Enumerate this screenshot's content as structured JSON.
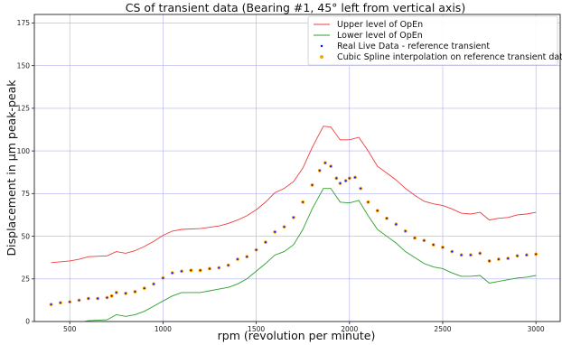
{
  "chart_data": {
    "type": "line",
    "title": "CS of transient data (Bearing #1, 45° left from vertical axis)",
    "xlabel": "rpm (revolution per minute)",
    "ylabel": "Displacement in μm peak-peak",
    "xlim": [
      310,
      3130
    ],
    "ylim": [
      0,
      180
    ],
    "xticks": [
      500,
      1000,
      1500,
      2000,
      2500,
      3000
    ],
    "yticks": [
      0,
      25,
      50,
      75,
      100,
      125,
      150,
      175
    ],
    "grid": true,
    "grid_color": "#b0b0f0",
    "legend_position": "upper-right",
    "series": [
      {
        "name": "Upper level of OpEn",
        "kind": "line",
        "color": "#f03c3c",
        "x": [
          400,
          500,
          550,
          600,
          700,
          750,
          800,
          850,
          900,
          950,
          1000,
          1050,
          1100,
          1200,
          1300,
          1350,
          1400,
          1450,
          1500,
          1550,
          1600,
          1650,
          1700,
          1750,
          1800,
          1860,
          1900,
          1950,
          2000,
          2050,
          2100,
          2150,
          2200,
          2250,
          2300,
          2350,
          2400,
          2450,
          2500,
          2550,
          2600,
          2650,
          2700,
          2750,
          2800,
          2850,
          2900,
          2950,
          3000
        ],
        "y": [
          34.5,
          35.5,
          36.5,
          38,
          38.5,
          41,
          40,
          41.5,
          44,
          47,
          50.5,
          53,
          54,
          54.5,
          56,
          57.5,
          59.5,
          62,
          65.5,
          70,
          75.5,
          78,
          82,
          90,
          102,
          114.5,
          114,
          106.5,
          106.5,
          108,
          100,
          91,
          87,
          83,
          78,
          74,
          70.5,
          69,
          68,
          66,
          63.5,
          63,
          64,
          59.5,
          60.5,
          61,
          62.5,
          63,
          64
        ]
      },
      {
        "name": "Lower level of OpEn",
        "kind": "line",
        "color": "#2ca02c",
        "x": [
          580,
          600,
          700,
          750,
          800,
          850,
          900,
          950,
          1000,
          1050,
          1100,
          1150,
          1200,
          1250,
          1300,
          1350,
          1400,
          1450,
          1500,
          1550,
          1600,
          1650,
          1700,
          1750,
          1800,
          1860,
          1900,
          1950,
          2000,
          2050,
          2100,
          2150,
          2200,
          2250,
          2300,
          2350,
          2400,
          2450,
          2500,
          2550,
          2600,
          2650,
          2700,
          2750,
          2800,
          2850,
          2900,
          2950,
          3000
        ],
        "y": [
          0,
          0.5,
          1,
          4,
          3,
          4,
          6,
          9,
          12,
          15,
          17,
          17,
          17,
          18,
          19,
          20,
          22,
          25,
          29.5,
          34,
          39,
          41,
          45,
          54,
          66,
          78,
          78,
          70,
          69.5,
          71,
          62,
          54,
          50,
          46,
          41,
          37.5,
          34,
          32,
          31,
          28.5,
          26.5,
          26.5,
          27,
          22.5,
          23.5,
          24.5,
          25.5,
          26,
          27
        ]
      },
      {
        "name": "Real Live Data - reference transient",
        "kind": "points",
        "color": "#0000ff",
        "x": [
          400,
          450,
          500,
          550,
          600,
          650,
          700,
          725,
          750,
          800,
          850,
          900,
          950,
          1000,
          1050,
          1100,
          1150,
          1200,
          1250,
          1300,
          1350,
          1400,
          1450,
          1500,
          1550,
          1600,
          1650,
          1700,
          1750,
          1800,
          1840,
          1870,
          1900,
          1930,
          1950,
          1980,
          2000,
          2030,
          2060,
          2100,
          2150,
          2200,
          2250,
          2300,
          2350,
          2400,
          2450,
          2500,
          2550,
          2600,
          2650,
          2700,
          2750,
          2800,
          2850,
          2900,
          2950,
          3000
        ],
        "y": [
          10,
          11,
          11.5,
          12.5,
          13.5,
          13.5,
          14,
          15,
          17,
          16.5,
          17.5,
          19.5,
          22,
          25.5,
          28.5,
          29.5,
          30,
          30,
          31,
          31.5,
          33,
          36.5,
          38,
          42,
          46.5,
          52.5,
          55.5,
          61,
          70,
          80,
          88.5,
          93,
          91,
          84,
          81,
          82.5,
          84,
          84.5,
          78,
          70,
          65,
          60.5,
          57,
          53,
          49,
          47.5,
          45,
          43.5,
          41,
          39,
          39,
          40,
          35.5,
          36.5,
          37,
          38.5,
          39,
          39.5
        ]
      },
      {
        "name": "Cubic Spline interpolation on reference transient dataset",
        "kind": "points",
        "color": "#ffa500",
        "x": [
          400,
          450,
          500,
          550,
          600,
          650,
          700,
          725,
          750,
          800,
          850,
          900,
          950,
          1000,
          1050,
          1100,
          1150,
          1200,
          1250,
          1300,
          1350,
          1400,
          1450,
          1500,
          1550,
          1600,
          1650,
          1700,
          1750,
          1800,
          1840,
          1870,
          1900,
          1930,
          1950,
          1980,
          2000,
          2030,
          2060,
          2100,
          2150,
          2200,
          2250,
          2300,
          2350,
          2400,
          2450,
          2500,
          2550,
          2600,
          2650,
          2700,
          2750,
          2800,
          2850,
          2900,
          2950,
          3000
        ],
        "y": [
          10,
          11,
          11.5,
          12.5,
          13.5,
          13.5,
          14,
          15,
          17,
          16.5,
          17.5,
          19.5,
          22,
          25.5,
          28.5,
          29.5,
          30,
          30,
          31,
          31.5,
          33,
          36.5,
          38,
          42,
          46.5,
          52.5,
          55.5,
          61,
          70,
          80,
          88.5,
          93,
          91,
          84,
          81,
          82.5,
          84,
          84.5,
          78,
          70,
          65,
          60.5,
          57,
          53,
          49,
          47.5,
          45,
          43.5,
          41,
          39,
          39,
          40,
          35.5,
          36.5,
          37,
          38.5,
          39,
          39.5
        ]
      }
    ]
  }
}
